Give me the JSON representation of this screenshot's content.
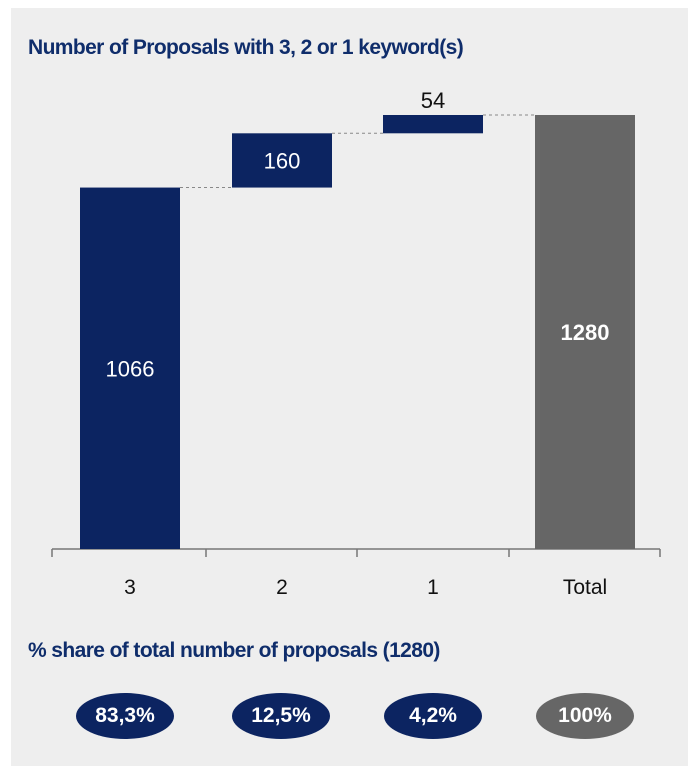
{
  "colors": {
    "navy": "#0c2461",
    "gray": "#666666",
    "title": "#0f2d6b",
    "background": "#eeeeee"
  },
  "chart_data": {
    "type": "bar",
    "subtype": "waterfall",
    "title": "Number of Proposals with 3, 2 or 1 keyword(s)",
    "categories": [
      "3",
      "2",
      "1",
      "Total"
    ],
    "values": [
      1066,
      160,
      54,
      1280
    ],
    "labels": [
      "1066",
      "160",
      "54",
      "1280"
    ],
    "bar_colors": [
      "#0c2461",
      "#0c2461",
      "#0c2461",
      "#666666"
    ],
    "connectors": true,
    "ylim": [
      0,
      1280
    ],
    "grid": false,
    "xlabel": "",
    "ylabel": ""
  },
  "share": {
    "title": "% share of total number of proposals (1280)",
    "items": [
      {
        "label": "83,3%",
        "value": 83.3,
        "color": "#0c2461"
      },
      {
        "label": "12,5%",
        "value": 12.5,
        "color": "#0c2461"
      },
      {
        "label": "4,2%",
        "value": 4.2,
        "color": "#0c2461"
      },
      {
        "label": "100%",
        "value": 100,
        "color": "#666666"
      }
    ]
  }
}
